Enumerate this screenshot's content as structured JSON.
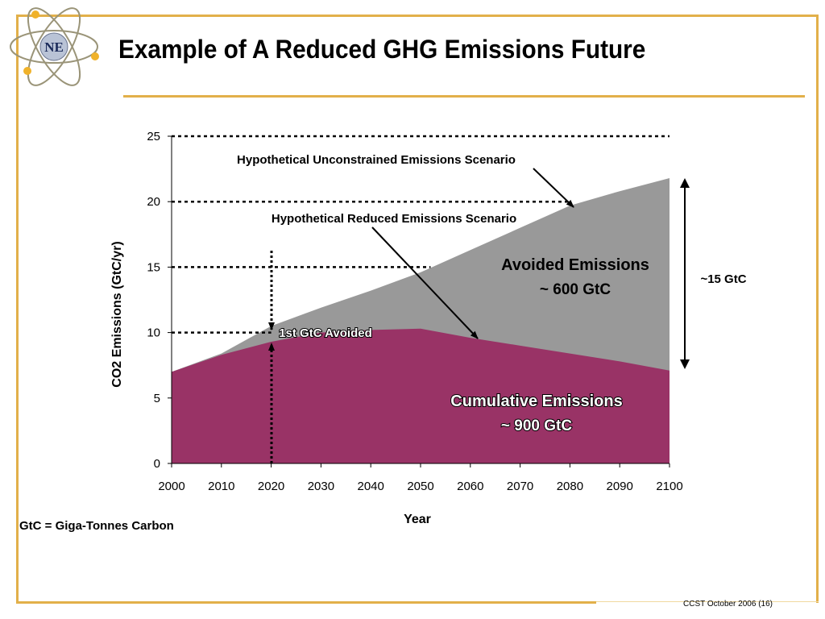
{
  "slide": {
    "title": "Example of A Reduced GHG Emissions Future",
    "footnote": "GtC = Giga-Tonnes Carbon",
    "footer": "CCST October 2006 (16)",
    "logo_text": "NE"
  },
  "colors": {
    "accent": "#e2b04a",
    "unconstrained": "#999999",
    "reduced": "#993366"
  },
  "chart_data": {
    "type": "area",
    "title": "",
    "xlabel": "Year",
    "ylabel": "CO2 Emissions (GtC/yr)",
    "x": [
      2000,
      2010,
      2020,
      2030,
      2040,
      2050,
      2060,
      2070,
      2080,
      2090,
      2100
    ],
    "xlim": [
      2000,
      2100
    ],
    "ylim": [
      0,
      25
    ],
    "xticks": [
      "2000",
      "2010",
      "2020",
      "2030",
      "2040",
      "2050",
      "2060",
      "2070",
      "2080",
      "2090",
      "2100"
    ],
    "yticks": [
      "0",
      "5",
      "10",
      "15",
      "20",
      "25"
    ],
    "series": [
      {
        "values": [
          7.0,
          8.4,
          10.5,
          11.9,
          13.2,
          14.6,
          16.3,
          18.0,
          19.7,
          20.8,
          21.8
        ]
      },
      {
        "values": [
          7.0,
          8.3,
          9.3,
          10.0,
          10.2,
          10.3,
          9.6,
          9.0,
          8.4,
          7.8,
          7.1
        ]
      }
    ],
    "reference_lines_y": [
      10,
      15,
      20,
      25
    ],
    "annotations": {
      "unconstrained": "Hypothetical Unconstrained Emissions Scenario",
      "reduced": "Hypothetical Reduced Emissions Scenario",
      "avoided_label": "Avoided Emissions",
      "avoided_value": "~ 600 GtC",
      "cumulative_label": "Cumulative Emissions",
      "cumulative_value": "~ 900 GtC",
      "first_avoided": "1st GtC Avoided",
      "range": "~15 GtC"
    }
  }
}
